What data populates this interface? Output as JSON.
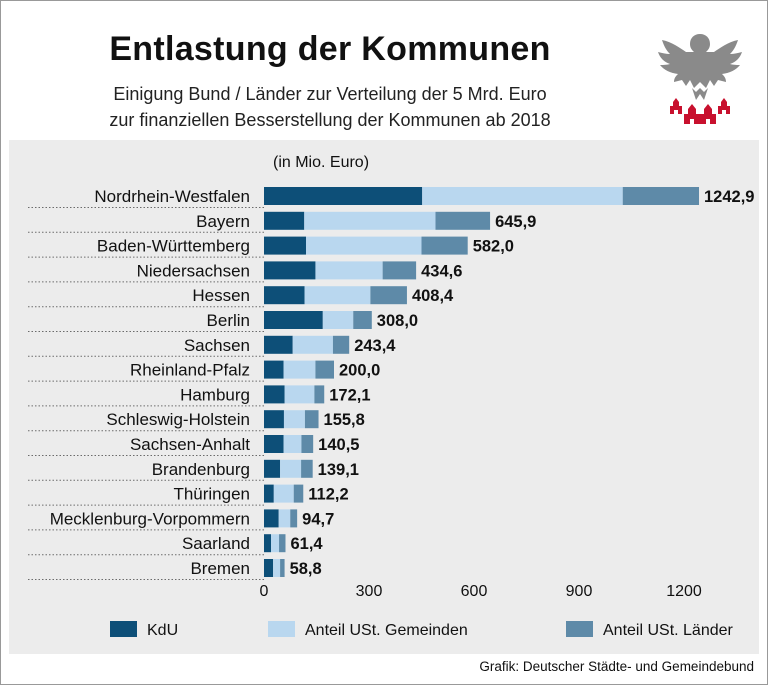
{
  "header": {
    "title": "Entlastung der Kommunen",
    "subtitle_line1": "Einigung Bund / Länder zur Verteilung der 5 Mrd. Euro",
    "subtitle_line2": "zur finanziellen Besserstellung der Kommunen ab 2018"
  },
  "logo_icon": "federal-eagle-and-city-crowns-icon",
  "source": "Grafik: Deutscher Städte- und Gemeindebund",
  "chart_data": {
    "type": "bar",
    "orientation": "horizontal",
    "stacked": true,
    "unit_label": "(in Mio. Euro)",
    "categories": [
      "Nordrhein-Westfalen",
      "Bayern",
      "Baden-Württemberg",
      "Niedersachsen",
      "Hessen",
      "Berlin",
      "Sachsen",
      "Rheinland-Pfalz",
      "Hamburg",
      "Schleswig-Holstein",
      "Sachsen-Anhalt",
      "Brandenburg",
      "Thüringen",
      "Mecklenburg-Vorpommern",
      "Saarland",
      "Bremen"
    ],
    "series": [
      {
        "name": "KdU",
        "color": "#0d4f78",
        "values": [
          452,
          115,
          120,
          147,
          116,
          168,
          82,
          56,
          59,
          57,
          56,
          46,
          28,
          42,
          20,
          26
        ]
      },
      {
        "name": "Anteil USt. Gemeinden",
        "color": "#b9d7ef",
        "values": [
          573,
          375,
          330,
          192,
          188,
          87,
          115,
          91,
          85,
          60,
          51,
          60,
          57,
          33,
          23,
          20
        ]
      },
      {
        "name": "Anteil USt. Länder",
        "color": "#5e8aa8",
        "values": [
          217.9,
          155.9,
          132.0,
          95.6,
          104.4,
          53.0,
          46.4,
          53.0,
          28.1,
          38.8,
          33.5,
          33.1,
          27.2,
          19.7,
          18.4,
          12.8
        ]
      }
    ],
    "totals": [
      "1242,9",
      "645,9",
      "582,0",
      "434,6",
      "408,4",
      "308,0",
      "243,4",
      "200,0",
      "172,1",
      "155,8",
      "140,5",
      "139,1",
      "112,2",
      "94,7",
      "61,4",
      "58,8"
    ],
    "x_ticks": [
      0,
      300,
      600,
      900,
      1200
    ],
    "xlim": [
      0,
      1300
    ]
  }
}
